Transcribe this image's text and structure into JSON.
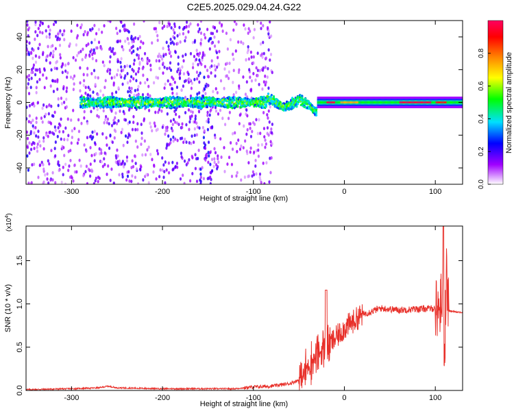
{
  "title": "C2E5.2025.029.04.24.G22",
  "chart_data": [
    {
      "type": "heatmap",
      "xlabel": "Height of straight line (km)",
      "ylabel": "Frequency (Hz)",
      "xlim": [
        -350,
        130
      ],
      "ylim": [
        -50,
        50
      ],
      "xticks": [
        -300,
        -200,
        -100,
        0,
        100
      ],
      "yticks": [
        -40,
        -20,
        0,
        20,
        40
      ],
      "grid": false,
      "colorbar": {
        "label": "Normalized spectral amplitude",
        "range": [
          0.0,
          1.0
        ],
        "ticks": [
          0.0,
          0.2,
          0.4,
          0.6,
          0.8
        ],
        "colors": [
          "#ffffff",
          "#a000ff",
          "#0000ff",
          "#00e0ff",
          "#00ff00",
          "#ffff00",
          "#ff8000",
          "#ff0000",
          "#ff0060"
        ]
      },
      "features": {
        "noise_region_km": [
          -350,
          -80
        ],
        "signal_start_km": -290,
        "stable_carrier_from_km": -30,
        "carrier_frequency_hz": 0
      }
    },
    {
      "type": "line",
      "xlabel": "Height of straight line (km)",
      "ylabel": "SNR (10 * v/v)",
      "y_multiplier": "(x10",
      "y_multiplier_exp": "4",
      "y_multiplier_close": ")",
      "xlim": [
        -350,
        130
      ],
      "ylim": [
        0,
        1.9
      ],
      "xticks": [
        -300,
        -200,
        -100,
        0,
        100
      ],
      "yticks": [
        0.0,
        0.5,
        1.0,
        1.5
      ],
      "ytick_labels": [
        "0.0",
        "0.5",
        "1.0",
        "1.5"
      ],
      "grid": false,
      "color": "#e8302a",
      "series": [
        {
          "x": [
            -350,
            -300,
            -270,
            -260,
            -250,
            -200,
            -150,
            -120,
            -100,
            -80,
            -60,
            -50,
            -45,
            -40,
            -30,
            -20,
            -10,
            0,
            10,
            20,
            40,
            60,
            80,
            100,
            105,
            108,
            110,
            112,
            115,
            130
          ],
          "y": [
            0.01,
            0.02,
            0.03,
            0.05,
            0.03,
            0.02,
            0.02,
            0.02,
            0.04,
            0.05,
            0.08,
            0.12,
            0.18,
            0.28,
            0.4,
            0.5,
            0.6,
            0.72,
            0.8,
            0.88,
            0.95,
            0.93,
            0.94,
            0.95,
            0.97,
            1.1,
            0.3,
            1.35,
            0.92,
            0.9
          ]
        }
      ]
    }
  ]
}
